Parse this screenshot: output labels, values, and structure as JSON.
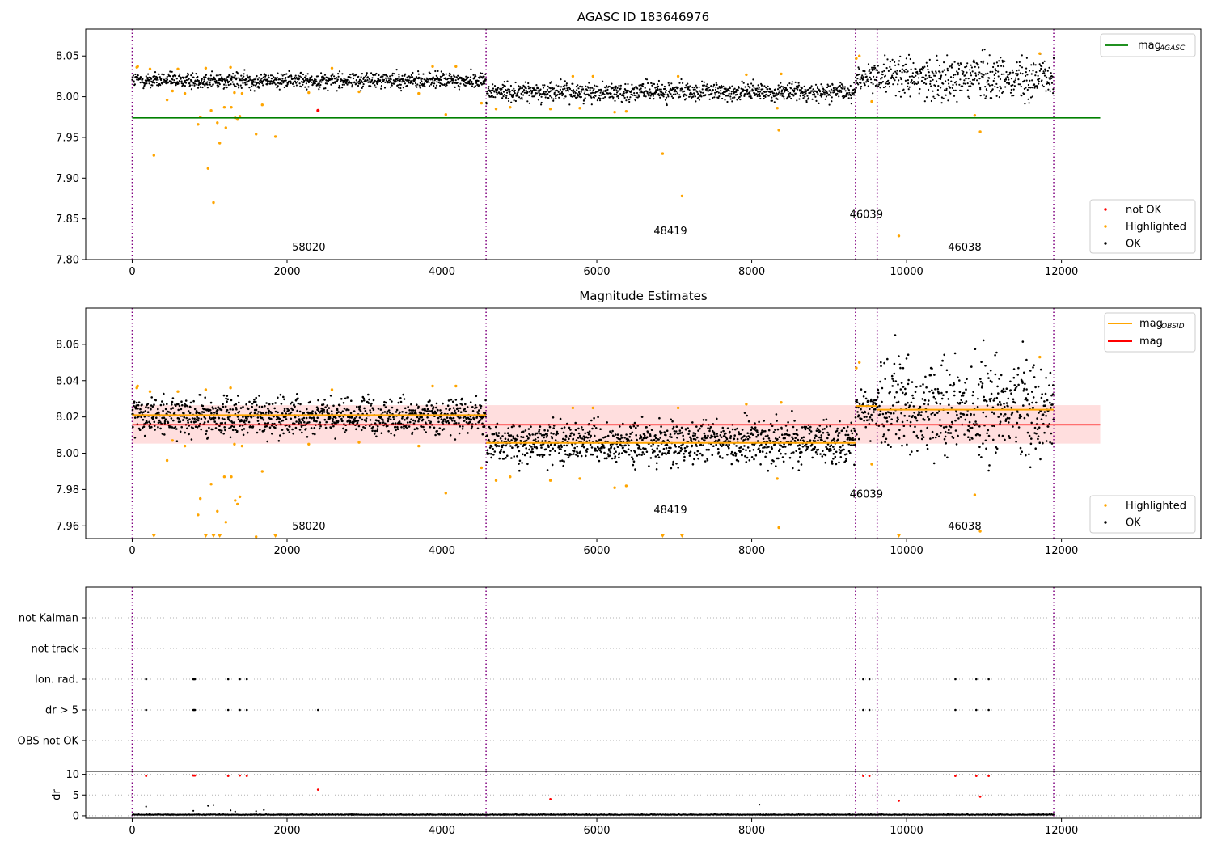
{
  "chart_data": [
    {
      "type": "scatter",
      "title": "AGASC ID 183646976",
      "ylim": [
        7.8,
        8.083
      ],
      "xlim": [
        -600,
        13800
      ],
      "xticks": [
        0,
        2000,
        4000,
        6000,
        8000,
        10000,
        12000
      ],
      "yticks": [
        7.8,
        7.85,
        7.9,
        7.95,
        8.0,
        8.05
      ],
      "ytick_labels": [
        "7.80",
        "7.85",
        "7.90",
        "7.95",
        "8.00",
        "8.05"
      ],
      "legend_position": "top-right and lower-right",
      "legend": [
        {
          "label": "mag",
          "sub": "AGASC",
          "kind": "line",
          "color": "#008000"
        },
        {
          "label": "not OK",
          "kind": "point",
          "color": "#ff0000"
        },
        {
          "label": "Highlighted",
          "kind": "point",
          "color": "#ffa500"
        },
        {
          "label": "OK",
          "kind": "point",
          "color": "#000000"
        }
      ],
      "mag_agasc": {
        "value": 7.974,
        "x_range": [
          0,
          12500
        ]
      },
      "obsid_boundaries": [
        0,
        4570,
        9340,
        9620,
        11900
      ],
      "obsid_labels": [
        {
          "text": "58020",
          "x": 2280,
          "y": 7.811
        },
        {
          "text": "48419",
          "x": 6950,
          "y": 7.831
        },
        {
          "text": "46039",
          "x": 9480,
          "y": 7.851
        },
        {
          "text": "46038",
          "x": 10750,
          "y": 7.811
        }
      ],
      "segments": [
        {
          "x_start": 0,
          "x_end": 4570,
          "mean": 8.02,
          "spread": 0.007
        },
        {
          "x_start": 4570,
          "x_end": 9340,
          "mean": 8.006,
          "spread": 0.008
        },
        {
          "x_start": 9340,
          "x_end": 9620,
          "mean": 8.023,
          "spread": 0.01
        },
        {
          "x_start": 9620,
          "x_end": 11900,
          "mean": 8.024,
          "spread": 0.012
        }
      ],
      "highlighted_points": [
        [
          60,
          8.036
        ],
        [
          70,
          8.037
        ],
        [
          230,
          8.034
        ],
        [
          280,
          7.928
        ],
        [
          450,
          7.996
        ],
        [
          520,
          8.007
        ],
        [
          590,
          8.034
        ],
        [
          680,
          8.004
        ],
        [
          850,
          7.966
        ],
        [
          880,
          7.975
        ],
        [
          950,
          8.035
        ],
        [
          980,
          7.912
        ],
        [
          1020,
          7.983
        ],
        [
          1050,
          7.87
        ],
        [
          1100,
          7.968
        ],
        [
          1130,
          7.943
        ],
        [
          1190,
          7.987
        ],
        [
          1210,
          7.962
        ],
        [
          1270,
          8.036
        ],
        [
          1280,
          7.987
        ],
        [
          1320,
          8.005
        ],
        [
          1330,
          7.974
        ],
        [
          1360,
          7.972
        ],
        [
          1390,
          7.976
        ],
        [
          1420,
          8.004
        ],
        [
          1600,
          7.954
        ],
        [
          1680,
          7.99
        ],
        [
          1850,
          7.951
        ],
        [
          2280,
          8.005
        ],
        [
          2580,
          8.035
        ],
        [
          2930,
          8.006
        ],
        [
          3700,
          8.004
        ],
        [
          3880,
          8.037
        ],
        [
          4050,
          7.978
        ],
        [
          4180,
          8.037
        ],
        [
          4510,
          7.992
        ],
        [
          4700,
          7.985
        ],
        [
          4880,
          7.987
        ],
        [
          5400,
          7.985
        ],
        [
          5690,
          8.025
        ],
        [
          5780,
          7.986
        ],
        [
          5950,
          8.025
        ],
        [
          6230,
          7.981
        ],
        [
          6380,
          7.982
        ],
        [
          6850,
          7.93
        ],
        [
          7100,
          7.878
        ],
        [
          7050,
          8.025
        ],
        [
          7930,
          8.027
        ],
        [
          8330,
          7.986
        ],
        [
          8350,
          7.959
        ],
        [
          8380,
          8.028
        ],
        [
          9350,
          8.047
        ],
        [
          9390,
          8.05
        ],
        [
          9550,
          7.994
        ],
        [
          9900,
          7.829
        ],
        [
          10880,
          7.977
        ],
        [
          10950,
          7.957
        ],
        [
          11720,
          8.053
        ]
      ],
      "not_ok_points": [
        [
          2400,
          7.983
        ]
      ]
    },
    {
      "type": "scatter",
      "title": "Magnitude Estimates",
      "ylim": [
        7.953,
        8.08
      ],
      "xlim": [
        -600,
        13800
      ],
      "xticks": [
        0,
        2000,
        4000,
        6000,
        8000,
        10000,
        12000
      ],
      "yticks": [
        7.96,
        7.98,
        8.0,
        8.02,
        8.04,
        8.06
      ],
      "ytick_labels": [
        "7.96",
        "7.98",
        "8.00",
        "8.02",
        "8.04",
        "8.06"
      ],
      "legend": [
        {
          "label": "mag",
          "sub": "OBSID",
          "kind": "line",
          "color": "#ffa500"
        },
        {
          "label": "mag",
          "kind": "line",
          "color": "#ff0000"
        },
        {
          "label": "Highlighted",
          "kind": "point",
          "color": "#ffa500"
        },
        {
          "label": "OK",
          "kind": "point",
          "color": "#000000"
        }
      ],
      "mag": {
        "value": 8.0157,
        "band": [
          8.0053,
          8.0265
        ],
        "x_range": [
          0,
          12500
        ]
      },
      "mag_obsid": [
        {
          "x_start": 0,
          "x_end": 4570,
          "value": 8.021
        },
        {
          "x_start": 4570,
          "x_end": 9340,
          "value": 8.0057
        },
        {
          "x_start": 9340,
          "x_end": 9620,
          "value": 8.026
        },
        {
          "x_start": 9620,
          "x_end": 11900,
          "value": 8.024
        }
      ],
      "obsid_labels": [
        {
          "text": "58020",
          "x": 2280,
          "y": 7.9578
        },
        {
          "text": "48419",
          "x": 6950,
          "y": 7.9668
        },
        {
          "text": "46039",
          "x": 9480,
          "y": 7.9755
        },
        {
          "text": "46038",
          "x": 10750,
          "y": 7.9578
        }
      ],
      "clipped_low_x": [
        280,
        950,
        1050,
        1130,
        1850,
        6850,
        7100,
        9900
      ]
    },
    {
      "type": "scatter",
      "categories": [
        "not Kalman",
        "not track",
        "Ion. rad.",
        "dr > 5",
        "OBS not OK"
      ],
      "xlim": [
        -600,
        13800
      ],
      "flag_points": {
        "Ion. rad.": [
          180,
          790,
          800,
          810,
          1240,
          1390,
          1480,
          9440,
          9520,
          10630,
          10900,
          11060
        ],
        "dr > 5": [
          180,
          790,
          800,
          810,
          1240,
          1390,
          1480,
          2400,
          9440,
          9520,
          10630,
          10900,
          11060
        ]
      }
    },
    {
      "type": "scatter",
      "ylabel": "dr",
      "ylim": [
        -0.6,
        10.7
      ],
      "xlim": [
        -600,
        13800
      ],
      "xticks": [
        0,
        2000,
        4000,
        6000,
        8000,
        10000,
        12000
      ],
      "yticks": [
        0,
        5,
        10
      ],
      "red_points": [
        [
          180,
          9.6
        ],
        [
          790,
          9.7
        ],
        [
          800,
          9.7
        ],
        [
          810,
          9.7
        ],
        [
          1240,
          9.6
        ],
        [
          1390,
          9.7
        ],
        [
          1480,
          9.6
        ],
        [
          2400,
          6.3
        ],
        [
          5400,
          4.0
        ],
        [
          9440,
          9.6
        ],
        [
          9520,
          9.6
        ],
        [
          9900,
          3.6
        ],
        [
          10630,
          9.6
        ],
        [
          10900,
          9.6
        ],
        [
          10950,
          4.6
        ],
        [
          11060,
          9.6
        ]
      ],
      "high_black_points": [
        [
          180,
          2.2
        ],
        [
          790,
          1.2
        ],
        [
          980,
          2.4
        ],
        [
          1050,
          2.6
        ],
        [
          1270,
          1.3
        ],
        [
          1330,
          1.0
        ],
        [
          1600,
          1.1
        ],
        [
          1700,
          1.4
        ],
        [
          8100,
          2.7
        ]
      ]
    }
  ]
}
